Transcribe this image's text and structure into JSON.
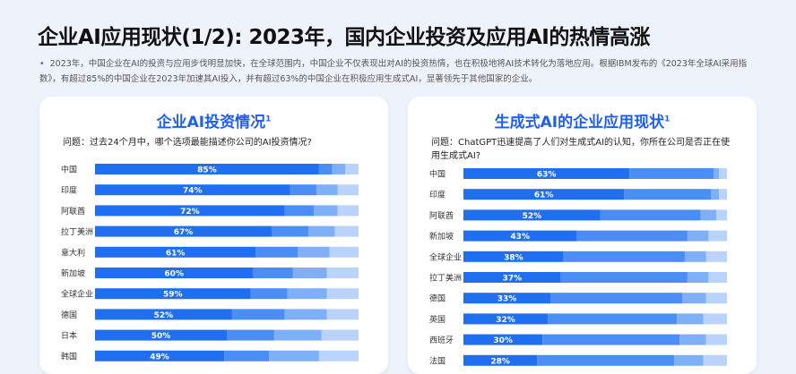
{
  "page": {
    "title": "企业AI应用现状(1/2): 2023年，国内企业投资及应用AI的热情高涨",
    "intro": "2023年，中国企业在AI的投资与应用步伐明显加快，在全球范围内，中国企业不仅表现出对AI的投资热情，也在积极地将AI技术转化为落地应用。根据IBM发布的《2023年全球AI采用指数》，有超过85%的中国企业在2023年加速其AI投入，并有超过63%的中国企业在积极应用生成式AI，显著领先于其他国家的企业。",
    "bullet": "•"
  },
  "left_card": {
    "title": "企业AI投资情况",
    "title_sup": "1",
    "question": "问题：过去24个月中，哪个选项最能描述你公司的AI投资情况?"
  },
  "right_card": {
    "title": "生成式AI的企业应用现状",
    "title_sup": "1",
    "question": "问题：ChatGPT迅速提高了人们对生成式AI的认知，你所在公司是否正在使用生成式AI?"
  },
  "colors": {
    "accent": "#1f5ff0",
    "seg1": "#1f6ff0",
    "seg2": "#4a8ef5",
    "seg3": "#7fb0f7",
    "seg4": "#b9d3fb"
  },
  "chart_data": [
    {
      "type": "bar",
      "orientation": "horizontal",
      "stacked": true,
      "categories": [
        "中国",
        "印度",
        "阿联酋",
        "拉丁美洲",
        "意大利",
        "新加坡",
        "全球企业",
        "德国",
        "日本",
        "韩国"
      ],
      "xlim": [
        0,
        100
      ],
      "series": [
        {
          "values": [
            85,
            74,
            72,
            67,
            61,
            60,
            59,
            52,
            50,
            49
          ],
          "labels": [
            "85%",
            "74%",
            "72%",
            "67%",
            "61%",
            "60%",
            "59%",
            "52%",
            "50%",
            "49%"
          ]
        },
        {
          "values": [
            5,
            10,
            11,
            14,
            16,
            15,
            14,
            20,
            18,
            17
          ]
        },
        {
          "values": [
            5,
            8,
            9,
            10,
            12,
            13,
            15,
            16,
            18,
            19
          ]
        },
        {
          "values": [
            5,
            8,
            8,
            9,
            11,
            12,
            12,
            12,
            14,
            15
          ]
        }
      ]
    },
    {
      "type": "bar",
      "orientation": "horizontal",
      "stacked": true,
      "categories": [
        "中国",
        "印度",
        "阿联酋",
        "新加坡",
        "全球企业",
        "拉丁美洲",
        "德国",
        "英国",
        "西班牙",
        "法国"
      ],
      "xlim": [
        0,
        100
      ],
      "series": [
        {
          "values": [
            63,
            61,
            52,
            43,
            38,
            37,
            33,
            32,
            30,
            28
          ],
          "labels": [
            "63%",
            "61%",
            "52%",
            "43%",
            "38%",
            "37%",
            "33%",
            "32%",
            "30%",
            "28%"
          ]
        },
        {
          "values": [
            32,
            33,
            38,
            42,
            46,
            48,
            50,
            49,
            52,
            52
          ]
        },
        {
          "values": [
            2,
            3,
            6,
            8,
            8,
            8,
            9,
            10,
            10,
            11
          ]
        },
        {
          "values": [
            3,
            3,
            4,
            7,
            8,
            7,
            8,
            9,
            8,
            9
          ]
        }
      ]
    }
  ]
}
